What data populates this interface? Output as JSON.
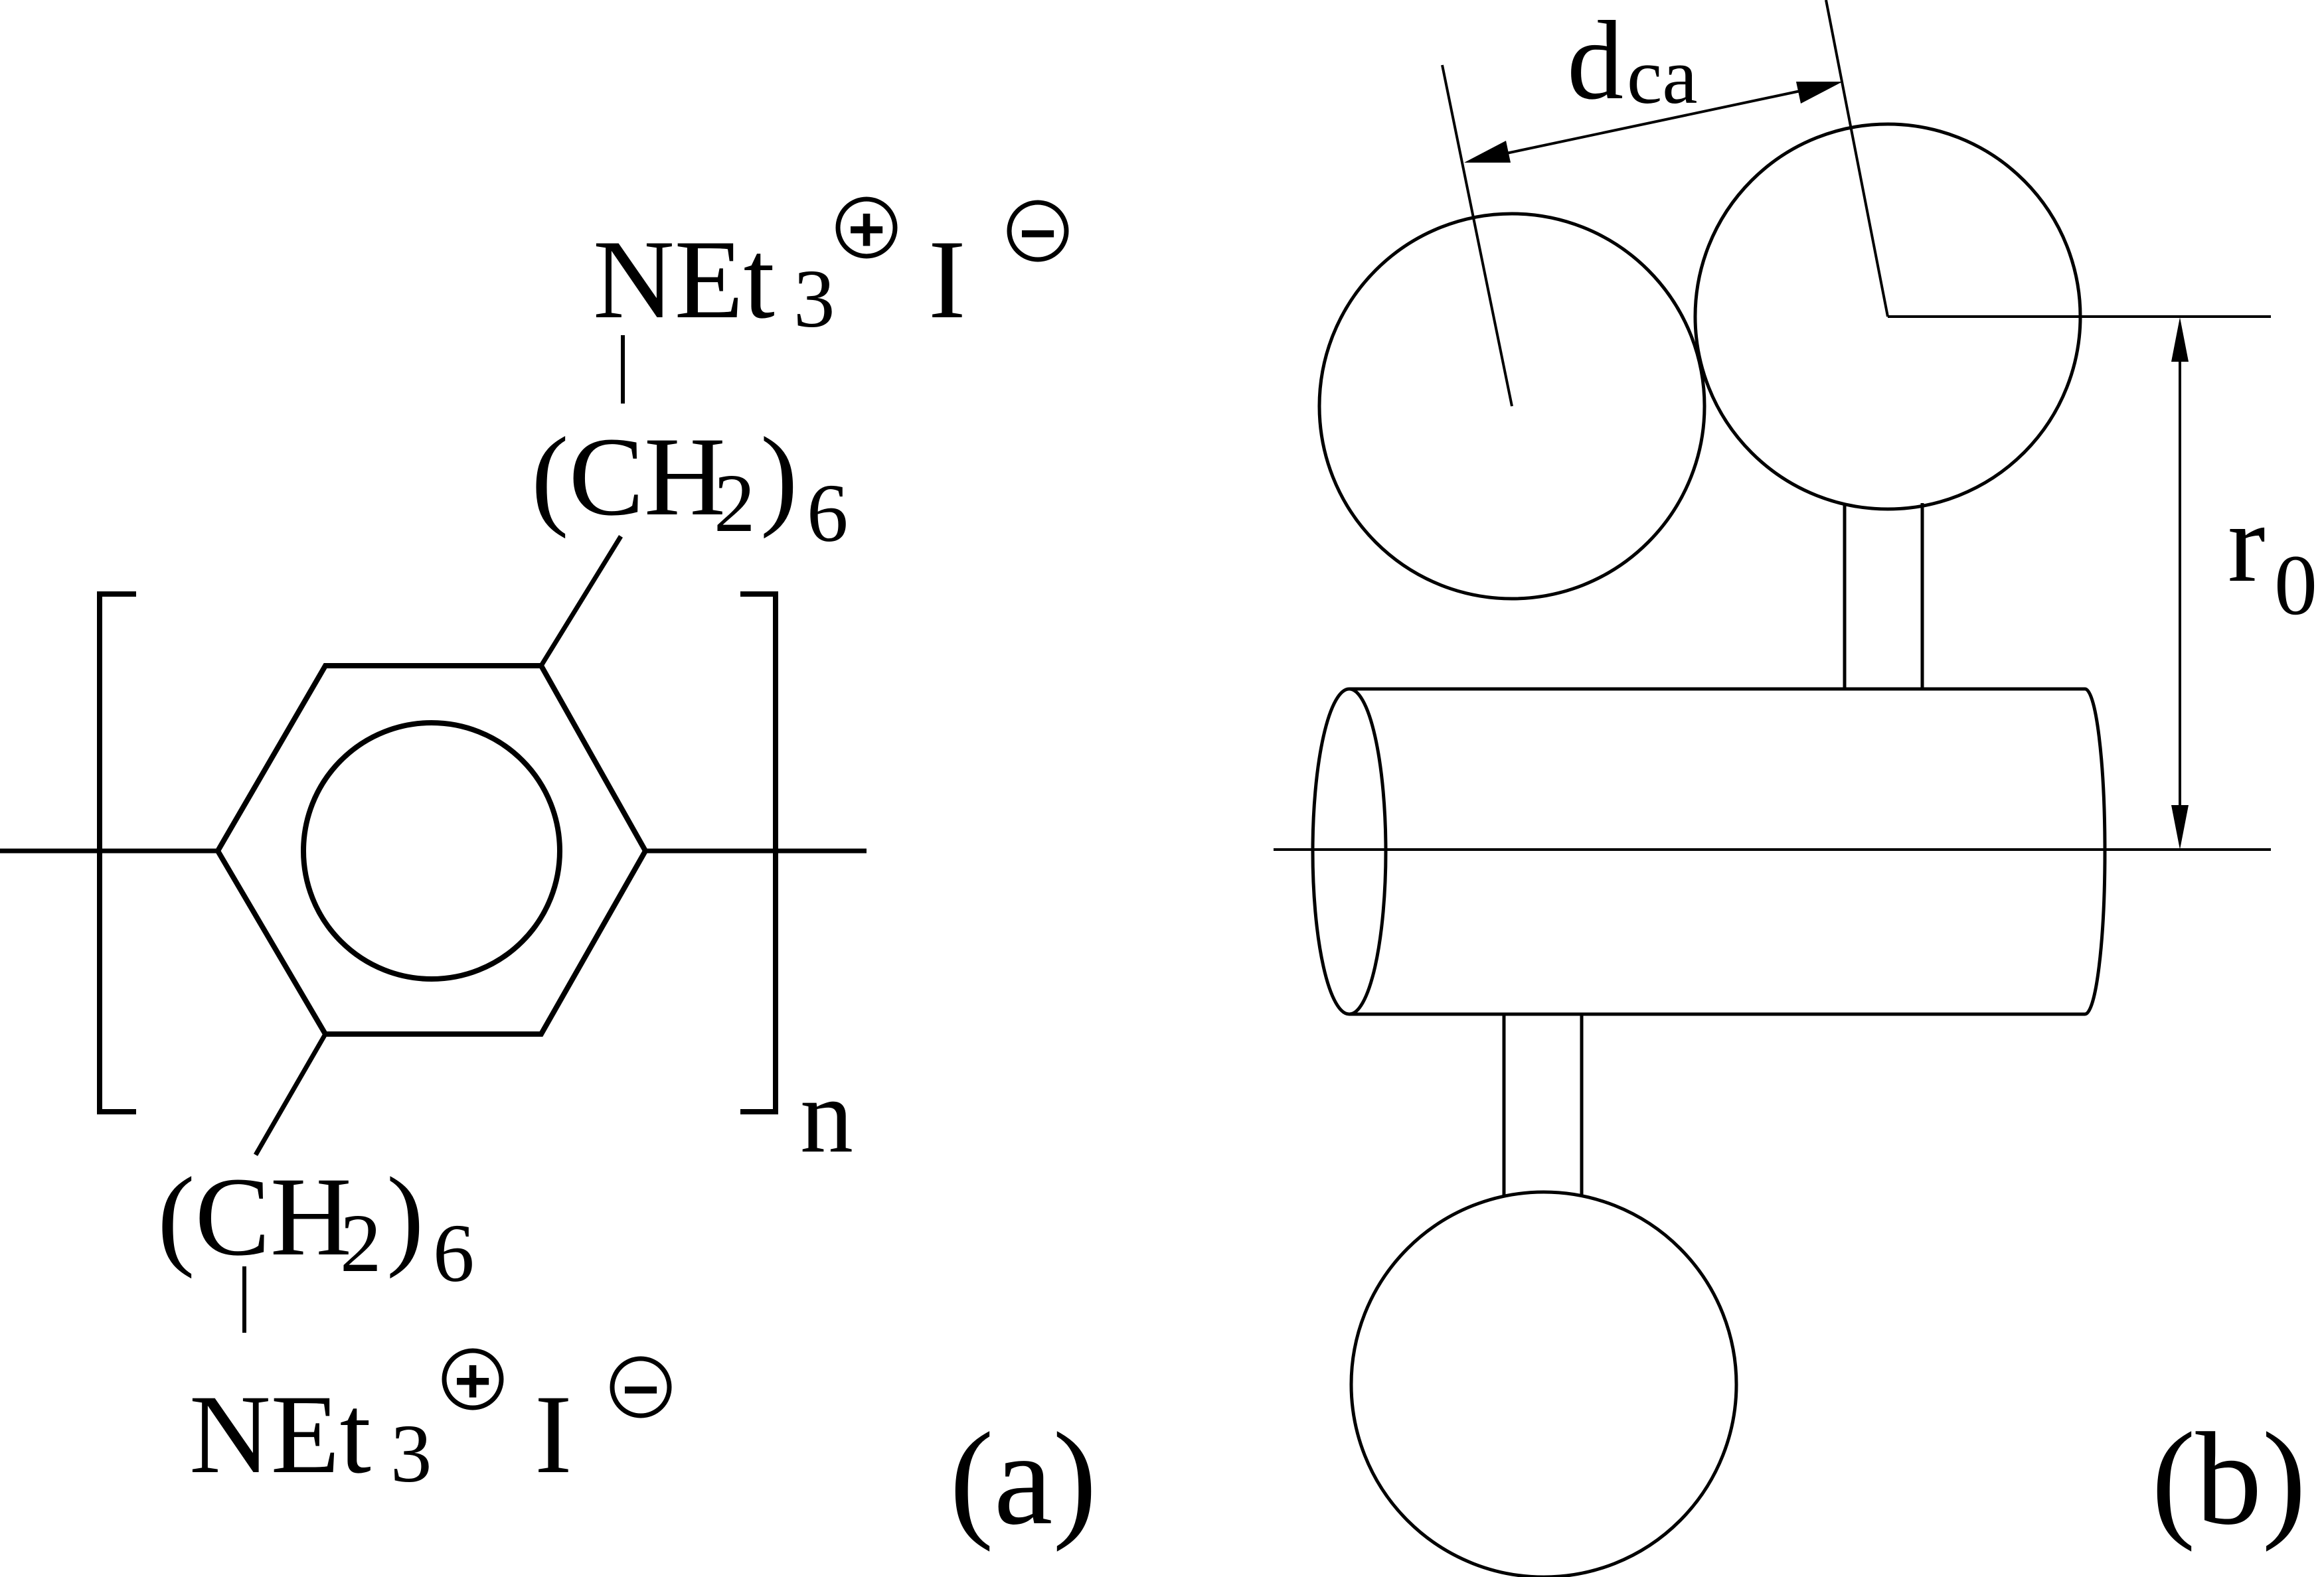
{
  "panel_a": {
    "label": "(a)",
    "top_group": {
      "cation": "NEt",
      "cation_subscript": "3",
      "cation_charge": "+",
      "anion": "I",
      "anion_charge": "−"
    },
    "top_chain": {
      "main": "(CH",
      "subscript": "2",
      "close": ")",
      "count": "6"
    },
    "bottom_chain": {
      "main": "(CH",
      "subscript": "2",
      "close": ")",
      "count": "6"
    },
    "bottom_group": {
      "cation": "NEt",
      "cation_subscript": "3",
      "cation_charge": "+",
      "anion": "I",
      "anion_charge": "−"
    },
    "repeat_subscript": "n"
  },
  "panel_b": {
    "label": "(b)",
    "spacing_label": "d",
    "spacing_subscript": "ca",
    "radius_label": "r",
    "radius_subscript": "0"
  }
}
